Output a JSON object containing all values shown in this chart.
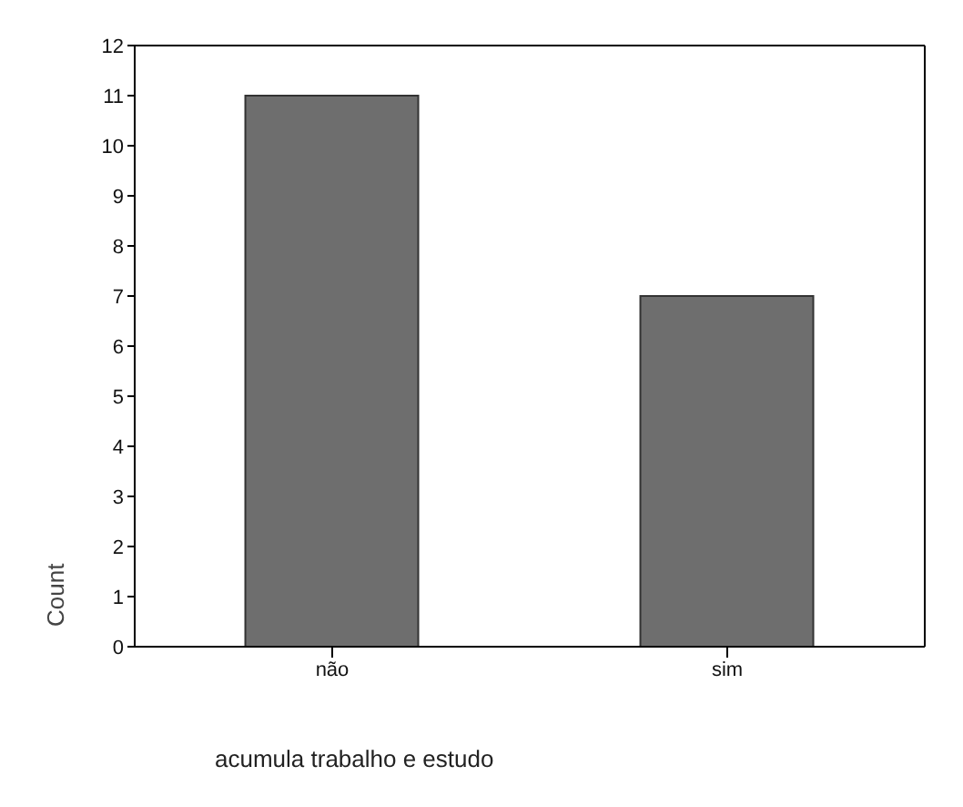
{
  "chart_data": {
    "type": "bar",
    "xlabel": "acumula trabalho e estudo",
    "ylabel": "Count",
    "categories": [
      "não",
      "sim"
    ],
    "values": [
      11,
      7
    ],
    "color": "#6e6e6e",
    "ylim": [
      0,
      12
    ],
    "yticks": [
      0,
      1,
      2,
      3,
      4,
      5,
      6,
      7,
      8,
      9,
      10,
      11,
      12
    ],
    "grid": false,
    "legend": false
  }
}
